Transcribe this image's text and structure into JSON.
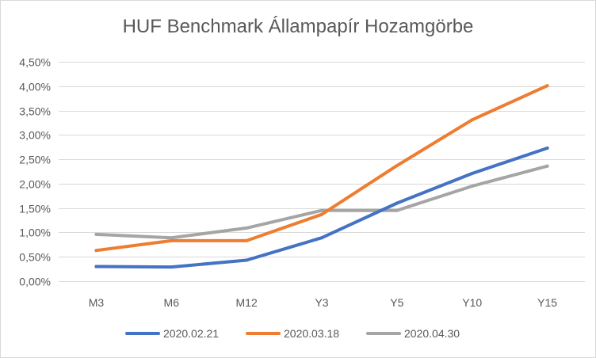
{
  "chart_data": {
    "type": "line",
    "title": "HUF Benchmark Állampapír Hozamgörbe",
    "categories": [
      "M3",
      "M6",
      "M12",
      "Y3",
      "Y5",
      "Y10",
      "Y15"
    ],
    "ylim": [
      0,
      4.5
    ],
    "y_ticks": [
      {
        "value": 0.0,
        "label": "0,00%"
      },
      {
        "value": 0.5,
        "label": "0,50%"
      },
      {
        "value": 1.0,
        "label": "1,00%"
      },
      {
        "value": 1.5,
        "label": "1,50%"
      },
      {
        "value": 2.0,
        "label": "2,00%"
      },
      {
        "value": 2.5,
        "label": "2,50%"
      },
      {
        "value": 3.0,
        "label": "3,00%"
      },
      {
        "value": 3.5,
        "label": "3,50%"
      },
      {
        "value": 4.0,
        "label": "4,00%"
      },
      {
        "value": 4.5,
        "label": "4,50%"
      }
    ],
    "grid": true,
    "legend_position": "bottom",
    "series": [
      {
        "name": "2020.02.21",
        "color": "#4472c4",
        "values": [
          0.3,
          0.29,
          0.43,
          0.89,
          1.6,
          2.21,
          2.73
        ]
      },
      {
        "name": "2020.03.18",
        "color": "#ed7d31",
        "values": [
          0.63,
          0.83,
          0.83,
          1.37,
          2.37,
          3.31,
          4.01
        ]
      },
      {
        "name": "2020.04.30",
        "color": "#a5a5a5",
        "values": [
          0.96,
          0.89,
          1.09,
          1.45,
          1.45,
          1.95,
          2.36
        ]
      }
    ]
  }
}
